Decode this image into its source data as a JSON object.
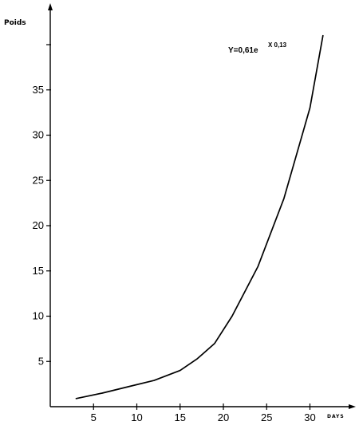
{
  "chart_data": {
    "type": "line",
    "title": "",
    "ylabel": "Poids",
    "xlabel": "DAYS",
    "annotation": {
      "base": "Y=0,61e",
      "exponent": "X 0,13"
    },
    "xlim": [
      0,
      35
    ],
    "ylim": [
      0,
      41
    ],
    "xticks": [
      5,
      10,
      15,
      20,
      25,
      30
    ],
    "yticks": [
      5,
      10,
      15,
      20,
      25,
      30,
      35
    ],
    "xtick_labels": [
      "5",
      "10",
      "15",
      "20",
      "25",
      "30"
    ],
    "ytick_labels": [
      "5",
      "10",
      "15",
      "20",
      "25",
      "30",
      "35"
    ],
    "grid": false,
    "legend": "none",
    "series": [
      {
        "x": [
          3,
          6,
          9,
          12,
          15,
          17,
          19,
          21,
          24,
          27,
          30,
          31.5
        ],
        "values": [
          0.9,
          1.5,
          2.2,
          2.9,
          4.0,
          5.3,
          7.0,
          10.0,
          15.5,
          23.0,
          33.0,
          41.0
        ]
      }
    ],
    "colors": {
      "line": "#000000",
      "axes": "#000000"
    }
  }
}
